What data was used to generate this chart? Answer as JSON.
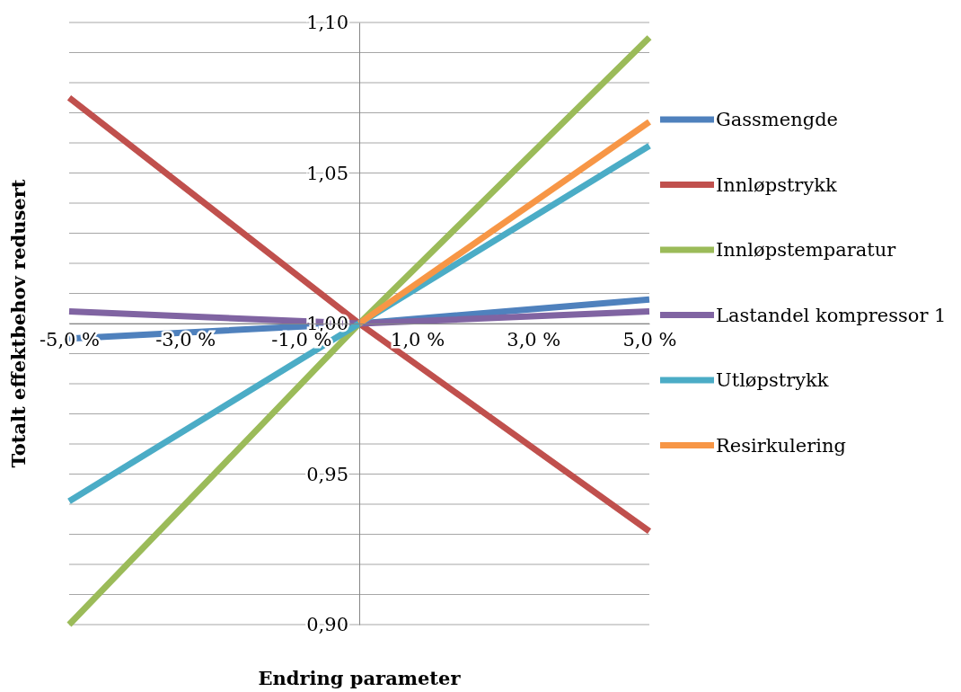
{
  "chart_data": {
    "type": "line",
    "xlabel": "Endring parameter",
    "ylabel": "Totalt effektbehov redusert",
    "xlim": [
      -5,
      5
    ],
    "xticks": [
      {
        "value": -5,
        "label": "-5,0 %"
      },
      {
        "value": -3,
        "label": "-3,0 %"
      },
      {
        "value": -1,
        "label": "-1,0 %"
      },
      {
        "value": 1,
        "label": "1,0 %"
      },
      {
        "value": 3,
        "label": "3,0 %"
      },
      {
        "value": 5,
        "label": "5,0 %"
      }
    ],
    "ylim": [
      0.9,
      1.1
    ],
    "yticks": [
      {
        "value": 0.9,
        "label": "0,90"
      },
      {
        "value": 0.91,
        "label": null
      },
      {
        "value": 0.92,
        "label": null
      },
      {
        "value": 0.93,
        "label": null
      },
      {
        "value": 0.94,
        "label": null
      },
      {
        "value": 0.95,
        "label": "0,95"
      },
      {
        "value": 0.96,
        "label": null
      },
      {
        "value": 0.97,
        "label": null
      },
      {
        "value": 0.98,
        "label": null
      },
      {
        "value": 0.99,
        "label": null
      },
      {
        "value": 1.0,
        "label": "1,00"
      },
      {
        "value": 1.01,
        "label": null
      },
      {
        "value": 1.02,
        "label": null
      },
      {
        "value": 1.03,
        "label": null
      },
      {
        "value": 1.04,
        "label": null
      },
      {
        "value": 1.05,
        "label": "1,05"
      },
      {
        "value": 1.06,
        "label": null
      },
      {
        "value": 1.07,
        "label": null
      },
      {
        "value": 1.08,
        "label": null
      },
      {
        "value": 1.09,
        "label": null
      },
      {
        "value": 1.1,
        "label": "1,10"
      }
    ],
    "grid": "y",
    "legend": "right",
    "marker": "none",
    "line_style": "solid",
    "series": [
      {
        "name": "Gassmengde",
        "color": "#4f81bd",
        "x": [
          -5,
          0,
          5
        ],
        "values": [
          0.995,
          1.0,
          1.008
        ]
      },
      {
        "name": "Innløpstrykk",
        "color": "#c0504d",
        "x": [
          -5,
          0,
          5
        ],
        "values": [
          1.075,
          1.0,
          0.931
        ]
      },
      {
        "name": "Innløpstemparatur",
        "color": "#9bbb59",
        "x": [
          -5,
          0,
          5
        ],
        "values": [
          0.9,
          1.0,
          1.095
        ]
      },
      {
        "name": "Lastandel kompressor 1",
        "color": "#8064a2",
        "x": [
          -5,
          0,
          5
        ],
        "values": [
          1.004,
          1.0,
          1.004
        ]
      },
      {
        "name": "Utløpstrykk",
        "color": "#4bacc6",
        "x": [
          -5,
          0,
          5
        ],
        "values": [
          0.941,
          1.0,
          1.059
        ]
      },
      {
        "name": "Resirkulering",
        "color": "#f79646",
        "x": [
          0,
          5
        ],
        "values": [
          1.0,
          1.067
        ]
      }
    ]
  }
}
